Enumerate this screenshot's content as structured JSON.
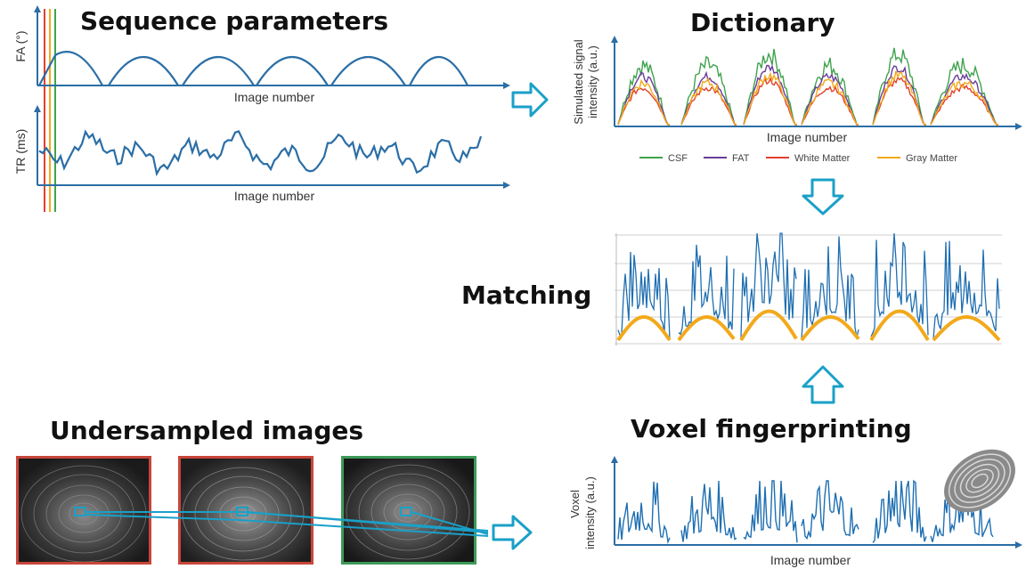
{
  "titles": {
    "sequence": "Sequence parameters",
    "dictionary": "Dictionary",
    "matching": "Matching",
    "undersampled": "Undersampled images",
    "voxel": "Voxel fingerprinting"
  },
  "sequence_panel": {
    "fa_axis": "FA (°)",
    "fa_x": "Image number",
    "tr_axis": "TR (ms)",
    "tr_x": "Image number"
  },
  "dictionary_panel": {
    "y_axis_1": "Simulated signal",
    "y_axis_2": "intensity (a.u.)",
    "x_axis": "Image number",
    "legend": [
      {
        "name": "CSF",
        "color": "#3fa34d"
      },
      {
        "name": "FAT",
        "color": "#6a3d9a"
      },
      {
        "name": "White Matter",
        "color": "#e0422b"
      },
      {
        "name": "Gray Matter",
        "color": "#f2a91b"
      }
    ]
  },
  "voxel_panel": {
    "y_axis_1": "Voxel",
    "y_axis_2": "intensity (a.u.)",
    "x_axis": "Image number"
  },
  "colors": {
    "signal_blue": "#1f6fb2",
    "arrow": "#1aa0c8",
    "orange": "#f2a91b"
  }
}
